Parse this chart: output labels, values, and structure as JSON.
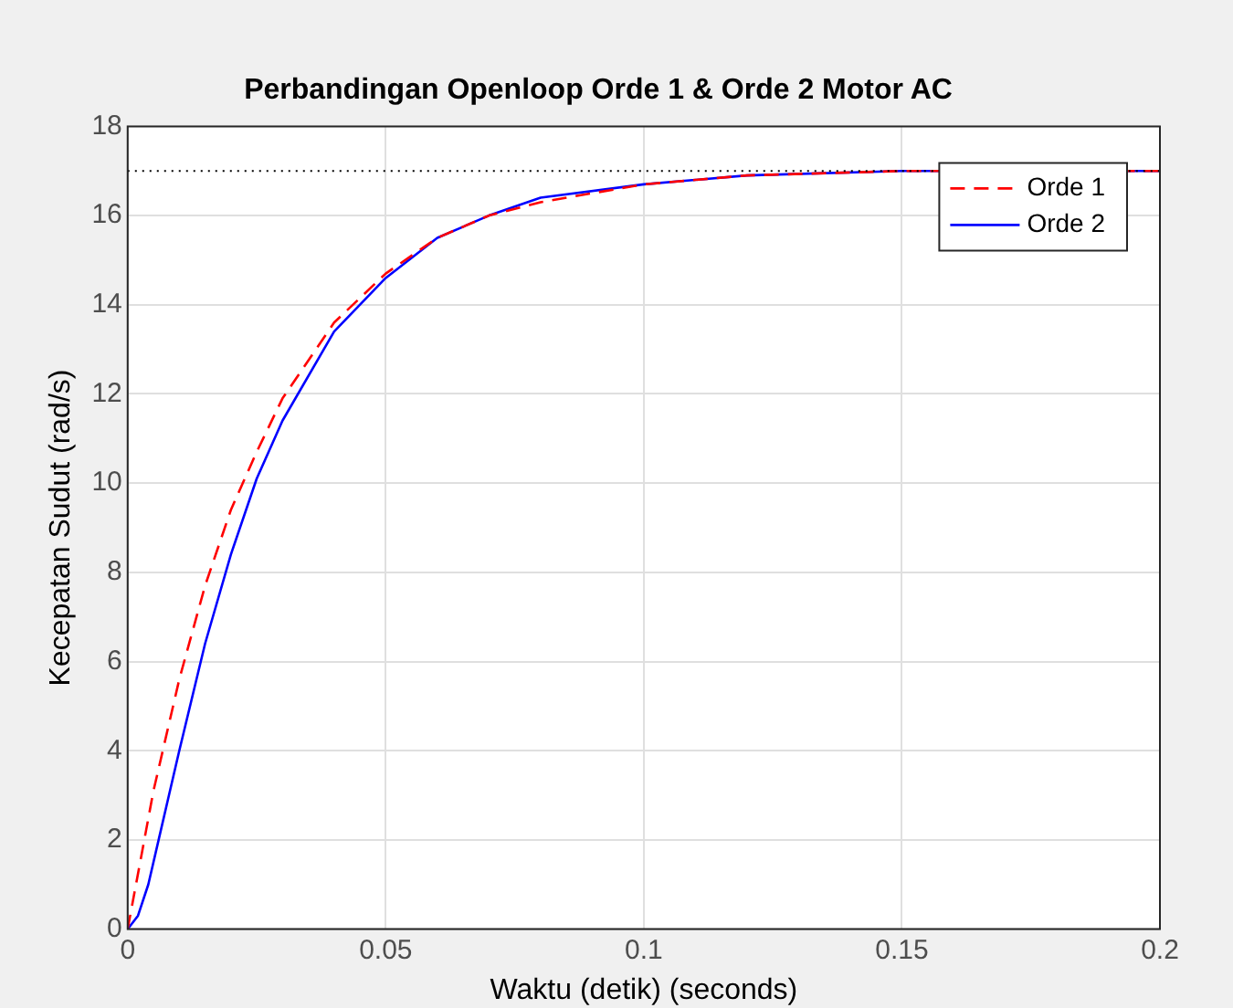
{
  "chart_data": {
    "type": "line",
    "title": "Perbandingan Openloop Orde 1 & Orde 2 Motor AC",
    "xlabel": "Waktu (detik) (seconds)",
    "ylabel": "Kecepatan Sudut (rad/s)",
    "xlim": [
      0,
      0.2
    ],
    "xticks": [
      0,
      0.05,
      0.1,
      0.15,
      0.2
    ],
    "ylim": [
      0,
      18
    ],
    "yticks": [
      0,
      2,
      4,
      6,
      8,
      10,
      12,
      14,
      16,
      18
    ],
    "grid": true,
    "legend": "top right",
    "marker": "none",
    "ref_lines": [
      {
        "axis": "y",
        "value": 17,
        "color": "#000000",
        "line_style": "dotted"
      }
    ],
    "series": [
      {
        "name": "Orde 1",
        "color": "#ff0000",
        "line_style": "dashed",
        "x": [
          0,
          0.005,
          0.01,
          0.015,
          0.02,
          0.025,
          0.03,
          0.04,
          0.05,
          0.06,
          0.07,
          0.08,
          0.1,
          0.12,
          0.15,
          0.2
        ],
        "values": [
          0,
          3.1,
          5.6,
          7.7,
          9.4,
          10.7,
          11.9,
          13.6,
          14.7,
          15.5,
          16.0,
          16.3,
          16.7,
          16.9,
          17.0,
          17.0
        ]
      },
      {
        "name": "Orde 2",
        "color": "#0000ff",
        "line_style": "solid",
        "x": [
          0,
          0.002,
          0.004,
          0.006,
          0.008,
          0.01,
          0.015,
          0.02,
          0.025,
          0.03,
          0.04,
          0.05,
          0.06,
          0.07,
          0.08,
          0.1,
          0.12,
          0.15,
          0.2
        ],
        "values": [
          0,
          0.3,
          1.0,
          2.0,
          3.0,
          4.0,
          6.4,
          8.4,
          10.1,
          11.4,
          13.4,
          14.6,
          15.5,
          16.0,
          16.4,
          16.7,
          16.9,
          17.0,
          17.0
        ]
      }
    ]
  }
}
